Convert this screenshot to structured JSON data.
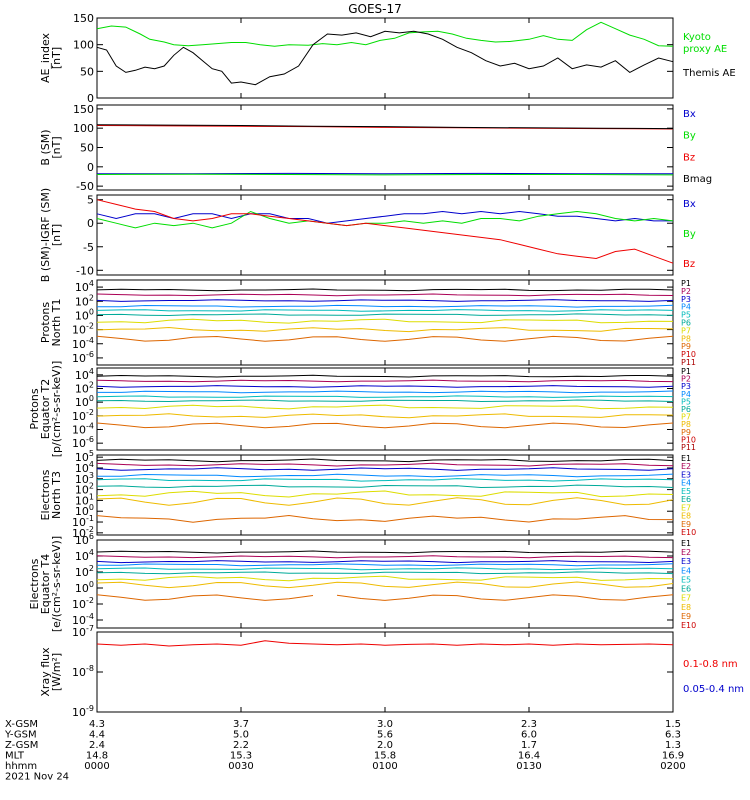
{
  "title": "GOES-17",
  "colors": {
    "black": "#000000",
    "red": "#ee0000",
    "green": "#00dd00",
    "blue": "#0000cc",
    "p_colors": [
      "#000000",
      "#aa0055",
      "#0000cc",
      "#0088ff",
      "#00bbbb",
      "#00aa99",
      "#dddd00",
      "#eebb00",
      "#dd6600",
      "#cc0000",
      "#aa0000"
    ],
    "e_colors": [
      "#000000",
      "#aa0055",
      "#0000cc",
      "#0088ff",
      "#00bbbb",
      "#00aa99",
      "#dddd00",
      "#eebb00",
      "#dd6600",
      "#cc0000",
      "#aa0000"
    ]
  },
  "chart_data": [
    {
      "id": "ae",
      "type": "line",
      "ylabel": [
        "AE_index",
        "[nT]"
      ],
      "ylim": [
        0,
        150
      ],
      "yticks": [
        {
          "v": 0,
          "label": "0"
        },
        {
          "v": 50,
          "label": "50"
        },
        {
          "v": 100,
          "label": "100"
        },
        {
          "v": 150,
          "label": "150"
        }
      ],
      "series": [
        {
          "name": "Kyoto proxy AE",
          "name_lines": [
            "Kyoto",
            "proxy AE"
          ],
          "color": "#00dd00",
          "x": [
            0,
            3,
            6,
            9,
            11,
            14,
            16,
            19,
            22,
            25,
            28,
            31,
            34,
            37,
            40,
            44,
            47,
            50,
            53,
            56,
            59,
            62,
            65,
            68,
            71,
            74,
            77,
            80,
            83,
            86,
            90,
            93,
            96,
            99,
            102,
            105,
            108,
            111,
            114,
            117,
            120
          ],
          "y": [
            130,
            135,
            133,
            120,
            110,
            105,
            100,
            98,
            100,
            102,
            104,
            104,
            100,
            97,
            100,
            99,
            102,
            100,
            104,
            100,
            108,
            112,
            122,
            124,
            125,
            120,
            112,
            108,
            105,
            106,
            110,
            117,
            110,
            108,
            128,
            142,
            130,
            118,
            110,
            98,
            97
          ]
        },
        {
          "name": "Themis AE",
          "name_lines": [
            "Themis AE"
          ],
          "color": "#000000",
          "x": [
            0,
            2,
            4,
            6,
            8,
            10,
            12,
            14,
            16,
            18,
            20,
            22,
            24,
            26,
            28,
            30,
            33,
            36,
            39,
            42,
            45,
            48,
            51,
            54,
            57,
            60,
            63,
            66,
            69,
            72,
            75,
            78,
            81,
            84,
            87,
            90,
            93,
            96,
            99,
            102,
            105,
            108,
            111,
            114,
            117,
            120
          ],
          "y": [
            95,
            90,
            60,
            48,
            52,
            58,
            55,
            60,
            80,
            95,
            85,
            70,
            55,
            50,
            28,
            30,
            25,
            40,
            45,
            60,
            100,
            120,
            118,
            122,
            115,
            125,
            122,
            125,
            120,
            110,
            95,
            85,
            70,
            60,
            65,
            55,
            60,
            75,
            55,
            62,
            58,
            70,
            48,
            62,
            75,
            68
          ]
        }
      ]
    },
    {
      "id": "b",
      "type": "line",
      "ylabel": [
        "B (SM)",
        "[nT]"
      ],
      "ylim": [
        -60,
        160
      ],
      "yticks": [
        {
          "v": -50,
          "label": "-50"
        },
        {
          "v": 0,
          "label": "0"
        },
        {
          "v": 50,
          "label": "50"
        },
        {
          "v": 100,
          "label": "100"
        },
        {
          "v": 150,
          "label": "150"
        }
      ],
      "series": [
        {
          "name": "Bx",
          "color": "#0000cc",
          "x": [
            0,
            20,
            40,
            60,
            80,
            100,
            120
          ],
          "y": [
            -18,
            -18,
            -17,
            -18,
            -17,
            -18,
            -18
          ]
        },
        {
          "name": "By",
          "color": "#00dd00",
          "x": [
            0,
            20,
            40,
            60,
            80,
            100,
            120
          ],
          "y": [
            -20,
            -19,
            -20,
            -21,
            -20,
            -20,
            -21
          ]
        },
        {
          "name": "Bz",
          "color": "#ee0000",
          "x": [
            0,
            15,
            30,
            45,
            60,
            75,
            90,
            105,
            120
          ],
          "y": [
            107,
            106,
            105,
            104,
            102,
            101,
            100,
            99,
            98
          ]
        },
        {
          "name": "Bmag",
          "color": "#000000",
          "x": [
            0,
            15,
            30,
            45,
            60,
            75,
            90,
            105,
            120
          ],
          "y": [
            109,
            108,
            107,
            105,
            104,
            102,
            101,
            100,
            99
          ]
        }
      ]
    },
    {
      "id": "db",
      "type": "line",
      "ylabel": [
        "B (SM)-IGRF (SM)",
        "[nT]"
      ],
      "ylim": [
        -11,
        6
      ],
      "yticks": [
        {
          "v": -10,
          "label": "-10"
        },
        {
          "v": -5,
          "label": "-5"
        },
        {
          "v": 0,
          "label": "0"
        },
        {
          "v": 5,
          "label": "5"
        }
      ],
      "series": [
        {
          "name": "Bx",
          "color": "#0000cc",
          "x": [
            0,
            4,
            8,
            12,
            16,
            20,
            24,
            28,
            32,
            36,
            40,
            44,
            48,
            52,
            56,
            60,
            64,
            68,
            72,
            76,
            80,
            84,
            88,
            92,
            96,
            100,
            104,
            108,
            112,
            116,
            120
          ],
          "y": [
            2,
            1,
            2,
            2,
            1,
            2,
            2,
            1,
            2,
            2,
            1,
            1,
            0,
            0.5,
            1,
            1.5,
            2,
            2,
            2.5,
            2,
            2.5,
            2,
            2.5,
            2,
            1.5,
            1.5,
            1,
            0.5,
            1,
            0.5,
            0.5
          ]
        },
        {
          "name": "By",
          "color": "#00dd00",
          "x": [
            0,
            4,
            8,
            12,
            16,
            20,
            24,
            28,
            32,
            36,
            40,
            44,
            48,
            52,
            56,
            60,
            64,
            68,
            72,
            76,
            80,
            84,
            88,
            92,
            96,
            100,
            104,
            108,
            112,
            116,
            120
          ],
          "y": [
            1,
            0,
            -1,
            0,
            -0.5,
            0,
            -1,
            0,
            2.5,
            1,
            0,
            0.5,
            0,
            -0.5,
            0,
            0,
            0.5,
            0,
            0.5,
            0,
            1,
            1,
            0.5,
            1.5,
            2,
            2.5,
            2,
            1,
            0.5,
            1,
            0.5
          ]
        },
        {
          "name": "Bz",
          "color": "#ee0000",
          "x": [
            0,
            4,
            8,
            12,
            16,
            20,
            24,
            28,
            32,
            36,
            40,
            44,
            48,
            52,
            56,
            60,
            64,
            68,
            72,
            76,
            80,
            84,
            88,
            92,
            96,
            100,
            104,
            108,
            112,
            116,
            120
          ],
          "y": [
            5,
            4,
            3,
            2.5,
            1,
            0.5,
            1,
            2,
            2,
            1.5,
            1,
            0.5,
            0,
            -0.5,
            0,
            -0.5,
            -1,
            -1.5,
            -2,
            -2.5,
            -3,
            -3.5,
            -4.5,
            -5.5,
            -6.5,
            -7,
            -7.5,
            -6,
            -5.5,
            -7,
            -8.5
          ]
        }
      ]
    },
    {
      "id": "pn",
      "type": "line",
      "log": true,
      "ylabel": [
        "Protons",
        "North T1"
      ],
      "ylim": [
        -7,
        5
      ],
      "yticks": [
        {
          "v": 4,
          "base": "10",
          "exp": "4"
        },
        {
          "v": 2,
          "base": "10",
          "exp": "2"
        },
        {
          "v": 0,
          "base": "10",
          "exp": "0"
        },
        {
          "v": -2,
          "base": "10",
          "exp": "-2"
        },
        {
          "v": -4,
          "base": "10",
          "exp": "-4"
        },
        {
          "v": -6,
          "base": "10",
          "exp": "-6"
        }
      ],
      "legend": [
        "P1",
        "P2",
        "P3",
        "P4",
        "P5",
        "P6",
        "P7",
        "P8",
        "P9",
        "P10",
        "P11"
      ],
      "levels": [
        3.6,
        2.9,
        2.1,
        1.3,
        0.7,
        0.1,
        -0.8,
        -2.0,
        -3.3,
        null,
        null
      ]
    },
    {
      "id": "pe",
      "type": "line",
      "log": true,
      "ylabel": [
        "Protons",
        "Equator T2",
        "[p/(cm²-s-sr-keV)]"
      ],
      "ylim": [
        -7,
        5
      ],
      "yticks": [
        {
          "v": 4,
          "base": "10",
          "exp": "4"
        },
        {
          "v": 2,
          "base": "10",
          "exp": "2"
        },
        {
          "v": 0,
          "base": "10",
          "exp": "0"
        },
        {
          "v": -2,
          "base": "10",
          "exp": "-2"
        },
        {
          "v": -4,
          "base": "10",
          "exp": "-4"
        },
        {
          "v": -6,
          "base": "10",
          "exp": "-6"
        }
      ],
      "legend": [
        "P1",
        "P2",
        "P3",
        "P4",
        "P5",
        "P6",
        "P7",
        "P8",
        "P9",
        "P10",
        "P11"
      ],
      "levels": [
        3.8,
        3.1,
        2.3,
        1.5,
        0.8,
        0.2,
        -0.7,
        -2.0,
        -3.4,
        null,
        null
      ]
    },
    {
      "id": "en",
      "type": "line",
      "log": true,
      "ylabel": [
        "Electrons",
        "North T3"
      ],
      "ylim": [
        -2.2,
        5.2
      ],
      "yticks": [
        {
          "v": 5,
          "base": "10",
          "exp": "5"
        },
        {
          "v": 4,
          "base": "10",
          "exp": "4"
        },
        {
          "v": 3,
          "base": "10",
          "exp": "3"
        },
        {
          "v": 2,
          "base": "10",
          "exp": "2"
        },
        {
          "v": 1,
          "base": "10",
          "exp": "1"
        },
        {
          "v": 0,
          "base": "10",
          "exp": "0"
        },
        {
          "v": -1,
          "base": "10",
          "exp": "-1"
        },
        {
          "v": -2,
          "base": "10",
          "exp": "-2"
        }
      ],
      "legend": [
        "E1",
        "E2",
        "E3",
        "E4",
        "E5",
        "E6",
        "E7",
        "E8",
        "E9",
        "E10"
      ],
      "levels": [
        4.7,
        4.3,
        3.9,
        3.3,
        2.9,
        2.3,
        1.6,
        0.9,
        -0.7,
        null
      ]
    },
    {
      "id": "ee",
      "type": "line",
      "log": true,
      "ylabel": [
        "Electrons",
        "Equator T4",
        "[e/(cm²-s-sr-keV)]"
      ],
      "ylim": [
        -5,
        6
      ],
      "yticks": [
        {
          "v": 6,
          "base": "10",
          "exp": "6"
        },
        {
          "v": 4,
          "base": "10",
          "exp": "4"
        },
        {
          "v": 2,
          "base": "10",
          "exp": "2"
        },
        {
          "v": 0,
          "base": "10",
          "exp": "0"
        },
        {
          "v": -2,
          "base": "10",
          "exp": "-2"
        },
        {
          "v": -4,
          "base": "10",
          "exp": "-4"
        }
      ],
      "legend": [
        "E1",
        "E2",
        "E3",
        "E4",
        "E5",
        "E6",
        "E7",
        "E8",
        "E9",
        "E10"
      ],
      "levels": [
        4.5,
        3.9,
        3.3,
        2.9,
        2.4,
        1.9,
        1.2,
        0.4,
        -1.2,
        null
      ]
    },
    {
      "id": "xr",
      "type": "line",
      "log": true,
      "ylabel": [
        "Xray flux",
        "[W/m²]"
      ],
      "ylim": [
        -9,
        -7
      ],
      "yticks": [
        {
          "v": -7,
          "base": "10",
          "exp": "-7"
        },
        {
          "v": -8,
          "base": "10",
          "exp": "-8"
        },
        {
          "v": -9,
          "base": "10",
          "exp": "-9"
        }
      ],
      "series": [
        {
          "name": "0.1-0.8 nm",
          "color": "#ee0000",
          "x": [
            0,
            5,
            10,
            15,
            20,
            25,
            30,
            35,
            40,
            45,
            50,
            55,
            60,
            65,
            70,
            75,
            80,
            85,
            90,
            95,
            100,
            105,
            110,
            115,
            120
          ],
          "y": [
            -7.3,
            -7.33,
            -7.3,
            -7.35,
            -7.32,
            -7.3,
            -7.33,
            -7.22,
            -7.28,
            -7.3,
            -7.32,
            -7.3,
            -7.33,
            -7.31,
            -7.3,
            -7.33,
            -7.3,
            -7.32,
            -7.3,
            -7.33,
            -7.3,
            -7.32,
            -7.31,
            -7.3,
            -7.32
          ]
        },
        {
          "name": "0.05-0.4 nm",
          "color": "#0000cc",
          "x": [],
          "y": []
        }
      ]
    }
  ],
  "x_axis": {
    "rows": [
      {
        "label": "X-GSM",
        "values": [
          "4.3",
          "3.7",
          "3.0",
          "2.3",
          "1.5"
        ]
      },
      {
        "label": "Y-GSM",
        "values": [
          "4.4",
          "5.0",
          "5.6",
          "6.0",
          "6.3"
        ]
      },
      {
        "label": "Z-GSM",
        "values": [
          "2.4",
          "2.2",
          "2.0",
          "1.7",
          "1.3"
        ]
      },
      {
        "label": "MLT",
        "values": [
          "14.8",
          "15.3",
          "15.8",
          "16.4",
          "16.9"
        ]
      },
      {
        "label": "hhmm",
        "values": [
          "0000",
          "0030",
          "0100",
          "0130",
          "0200"
        ]
      }
    ],
    "date": "2021 Nov 24",
    "range_minutes": [
      0,
      120
    ]
  }
}
